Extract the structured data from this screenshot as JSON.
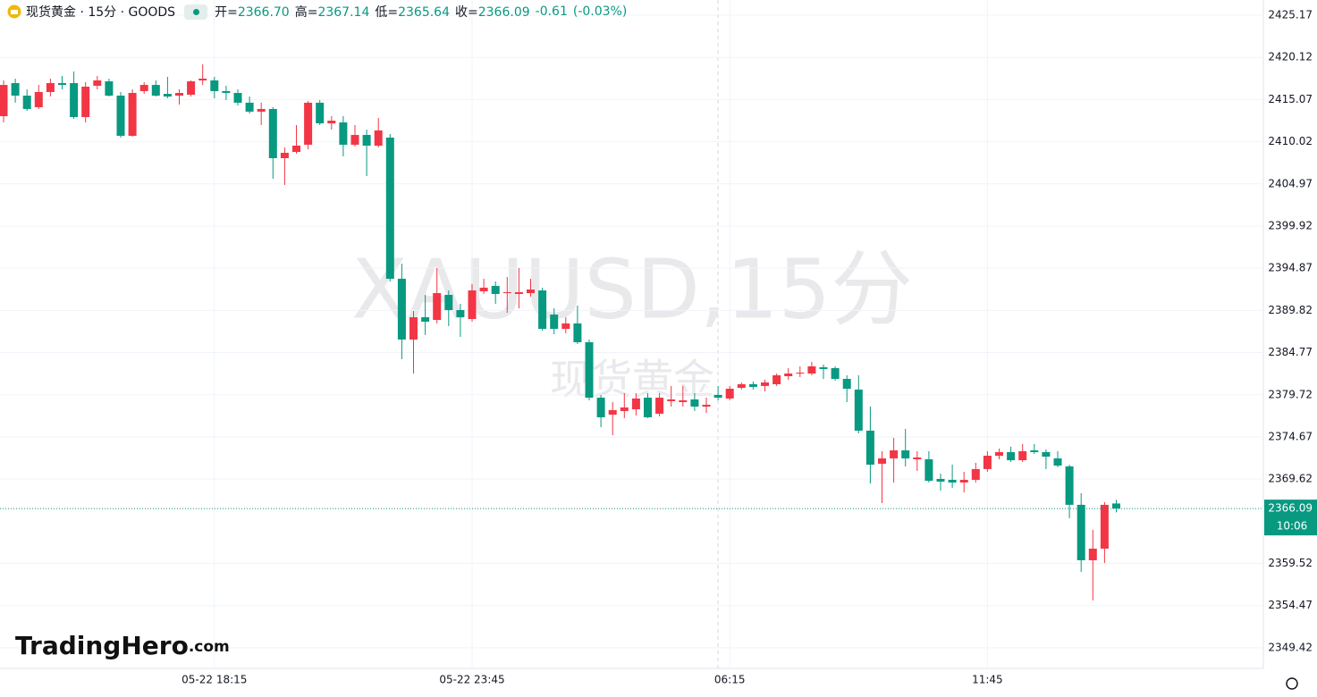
{
  "chart_data": {
    "type": "candlestick",
    "title": "现货黄金 · 15分 · GOODS",
    "header": [
      {
        "label": "开=",
        "value": "2366.70"
      },
      {
        "label": "高=",
        "value": "2367.14"
      },
      {
        "label": "低=",
        "value": "2365.64"
      },
      {
        "label": "收=",
        "value": "2366.09"
      }
    ],
    "change": "-0.61",
    "change_pct": "(-0.03%)",
    "watermark": "XAUUSD,15分",
    "watermark_sub": "现货黄金",
    "logo": "TradingHero",
    "logo_suffix": ".com",
    "price_tag": "2366.09",
    "countdown": "10:06",
    "up_color": "#f23645",
    "down_color": "#089981",
    "ylim": [
      2346.95,
      2426.99
    ],
    "yticks": [
      2349.42,
      2354.47,
      2359.52,
      2369.62,
      2374.67,
      2379.72,
      2384.77,
      2389.82,
      2394.87,
      2399.92,
      2404.97,
      2410.02,
      2415.07,
      2420.12,
      2425.17
    ],
    "grid": true,
    "categories": [
      null,
      null,
      null,
      null,
      null,
      null,
      null,
      null,
      null,
      null,
      null,
      null,
      null,
      null,
      null,
      null,
      null,
      null,
      "05-22 18:15",
      null,
      null,
      null,
      null,
      null,
      null,
      null,
      null,
      null,
      null,
      null,
      null,
      null,
      null,
      null,
      null,
      null,
      null,
      null,
      null,
      null,
      "05-22 23:45",
      null,
      null,
      null,
      null,
      null,
      null,
      null,
      null,
      null,
      null,
      null,
      null,
      null,
      null,
      null,
      null,
      null,
      null,
      null,
      null,
      null,
      "06:15",
      null,
      null,
      null,
      null,
      null,
      null,
      null,
      null,
      null,
      null,
      null,
      null,
      null,
      null,
      null,
      null,
      null,
      null,
      null,
      null,
      null,
      "11:45",
      null,
      null,
      null,
      null,
      null,
      null,
      null,
      null,
      null,
      null,
      null
    ],
    "open": [
      2413.08,
      2417.04,
      2415.54,
      2414.15,
      2415.97,
      2417.04,
      2417.04,
      2412.97,
      2416.72,
      2417.25,
      2415.54,
      2410.73,
      2416.08,
      2416.82,
      2415.75,
      2415.54,
      2415.65,
      2417.36,
      2417.36,
      2416.08,
      2415.86,
      2414.69,
      2413.62,
      2413.94,
      2408.05,
      2408.8,
      2409.66,
      2414.69,
      2412.22,
      2412.33,
      2409.66,
      2410.83,
      2409.55,
      2410.51,
      2393.61,
      2386.33,
      2389.0,
      2388.68,
      2391.68,
      2389.86,
      2388.79,
      2392.11,
      2392.75,
      2391.89,
      2391.79,
      2391.89,
      2392.21,
      2389.32,
      2387.61,
      2388.26,
      2386.01,
      2379.37,
      2377.34,
      2377.77,
      2377.98,
      2379.37,
      2377.45,
      2378.95,
      2378.84,
      2379.16,
      2378.3,
      2379.7,
      2379.27,
      2380.55,
      2380.98,
      2380.77,
      2380.98,
      2381.94,
      2382.26,
      2382.26,
      2383.01,
      2382.91,
      2381.62,
      2380.34,
      2375.42,
      2371.46,
      2372.1,
      2373.06,
      2371.99,
      2371.99,
      2369.64,
      2369.53,
      2369.21,
      2369.53,
      2370.82,
      2372.42,
      2372.85,
      2371.88,
      2373.06,
      2372.85,
      2372.1,
      2371.14,
      2366.54,
      2359.9,
      2361.29,
      2366.7
    ],
    "high": [
      2417.36,
      2417.57,
      2416.29,
      2416.82,
      2417.57,
      2417.89,
      2418.43,
      2417.15,
      2417.89,
      2417.57,
      2415.97,
      2416.29,
      2417.15,
      2417.36,
      2417.79,
      2416.29,
      2417.36,
      2419.29,
      2417.79,
      2416.72,
      2416.29,
      2415.43,
      2414.69,
      2414.15,
      2409.33,
      2412.01,
      2414.9,
      2415.01,
      2413.08,
      2413.08,
      2412.01,
      2411.47,
      2412.87,
      2410.94,
      2395.42,
      2389.75,
      2391.68,
      2394.89,
      2392.21,
      2390.61,
      2392.96,
      2393.61,
      2393.29,
      2393.82,
      2394.89,
      2393.61,
      2392.54,
      2390.07,
      2389.0,
      2390.4,
      2386.33,
      2379.7,
      2378.84,
      2379.91,
      2379.91,
      2379.91,
      2379.91,
      2380.77,
      2380.77,
      2379.91,
      2379.37,
      2380.77,
      2380.77,
      2381.19,
      2381.3,
      2381.52,
      2382.26,
      2382.91,
      2383.12,
      2383.66,
      2383.33,
      2383.12,
      2382.05,
      2382.05,
      2378.3,
      2372.96,
      2374.56,
      2375.63,
      2372.96,
      2372.96,
      2370.28,
      2371.35,
      2370.49,
      2371.57,
      2372.96,
      2373.28,
      2373.49,
      2373.81,
      2373.81,
      2373.17,
      2372.96,
      2371.35,
      2367.93,
      2363.54,
      2366.86,
      2367.14
    ],
    "low": [
      2412.33,
      2414.69,
      2413.72,
      2413.94,
      2415.43,
      2416.29,
      2412.76,
      2412.33,
      2416.29,
      2415.43,
      2410.51,
      2410.62,
      2415.75,
      2415.43,
      2415.22,
      2414.47,
      2415.43,
      2416.82,
      2415.22,
      2415.01,
      2414.36,
      2413.4,
      2412.01,
      2405.59,
      2404.84,
      2408.59,
      2409.12,
      2412.01,
      2411.47,
      2408.27,
      2409.44,
      2405.91,
      2409.33,
      2393.29,
      2383.98,
      2382.26,
      2386.87,
      2388.26,
      2387.94,
      2386.65,
      2388.47,
      2391.79,
      2390.61,
      2389.54,
      2390.07,
      2391.47,
      2387.4,
      2386.97,
      2387.08,
      2385.79,
      2379.05,
      2375.84,
      2374.88,
      2376.91,
      2377.24,
      2376.91,
      2377.13,
      2378.3,
      2378.3,
      2377.77,
      2377.56,
      2379.05,
      2379.05,
      2380.34,
      2380.34,
      2380.12,
      2380.77,
      2381.52,
      2381.84,
      2382.05,
      2381.62,
      2381.41,
      2378.84,
      2375.09,
      2369.1,
      2366.75,
      2369.21,
      2371.14,
      2370.6,
      2369.21,
      2368.25,
      2368.57,
      2368.03,
      2369.21,
      2370.49,
      2371.99,
      2371.67,
      2371.67,
      2372.63,
      2370.82,
      2371.03,
      2364.93,
      2358.51,
      2355.09,
      2359.58,
      2365.64
    ],
    "close": [
      2416.82,
      2415.54,
      2413.94,
      2415.97,
      2417.04,
      2416.82,
      2412.97,
      2416.61,
      2417.36,
      2415.54,
      2410.73,
      2415.86,
      2416.82,
      2415.54,
      2415.43,
      2415.86,
      2417.25,
      2417.57,
      2416.08,
      2415.86,
      2414.69,
      2413.62,
      2413.94,
      2408.05,
      2408.69,
      2409.55,
      2414.69,
      2412.22,
      2412.54,
      2409.66,
      2410.83,
      2409.55,
      2411.37,
      2393.61,
      2386.33,
      2389.0,
      2388.47,
      2391.89,
      2389.86,
      2389.0,
      2392.21,
      2392.54,
      2391.79,
      2392.0,
      2392.0,
      2392.32,
      2387.61,
      2387.61,
      2388.26,
      2386.01,
      2379.37,
      2377.02,
      2377.88,
      2378.2,
      2379.27,
      2377.02,
      2379.37,
      2379.16,
      2379.05,
      2378.3,
      2378.52,
      2379.37,
      2380.44,
      2380.98,
      2380.66,
      2381.19,
      2382.05,
      2382.26,
      2382.37,
      2383.12,
      2382.8,
      2381.62,
      2380.44,
      2375.42,
      2371.35,
      2372.1,
      2373.06,
      2372.1,
      2372.21,
      2369.42,
      2369.32,
      2369.21,
      2369.53,
      2370.82,
      2372.42,
      2372.85,
      2371.88,
      2372.96,
      2372.85,
      2372.31,
      2371.24,
      2366.54,
      2359.9,
      2361.29,
      2366.54,
      2366.09
    ]
  }
}
